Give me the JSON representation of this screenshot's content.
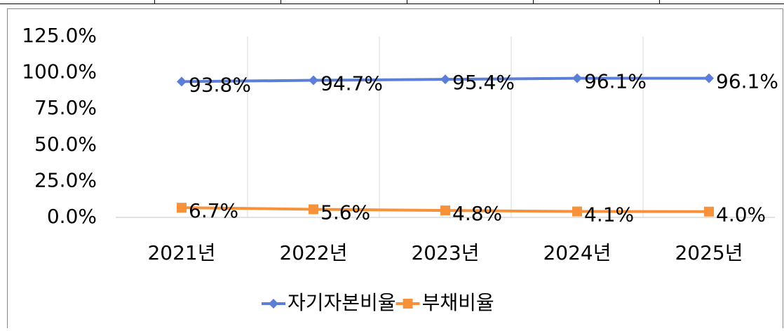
{
  "chart_data": {
    "type": "line",
    "categories": [
      "2021년",
      "2022년",
      "2023년",
      "2024년",
      "2025년"
    ],
    "series": [
      {
        "name": "자기자본비율",
        "color": "#5b7fd6",
        "marker": "diamond",
        "values": [
          93.8,
          94.7,
          95.4,
          96.1,
          96.1
        ],
        "value_labels": [
          "93.8%",
          "94.7%",
          "95.4%",
          "96.1%",
          "96.1%"
        ]
      },
      {
        "name": "부채비율",
        "color": "#f7923a",
        "marker": "square",
        "values": [
          6.7,
          5.6,
          4.8,
          4.1,
          4.0
        ],
        "value_labels": [
          "6.7%",
          "5.6%",
          "4.8%",
          "4.1%",
          "4.0%"
        ]
      }
    ],
    "ylim": [
      0,
      125
    ],
    "yticks": [
      {
        "value": 0,
        "label": "0.0%"
      },
      {
        "value": 25,
        "label": "25.0%"
      },
      {
        "value": 50,
        "label": "50.0%"
      },
      {
        "value": 75,
        "label": "75.0%"
      },
      {
        "value": 100,
        "label": "100.0%"
      },
      {
        "value": 125,
        "label": "125.0%"
      }
    ],
    "legend": "bottom"
  }
}
